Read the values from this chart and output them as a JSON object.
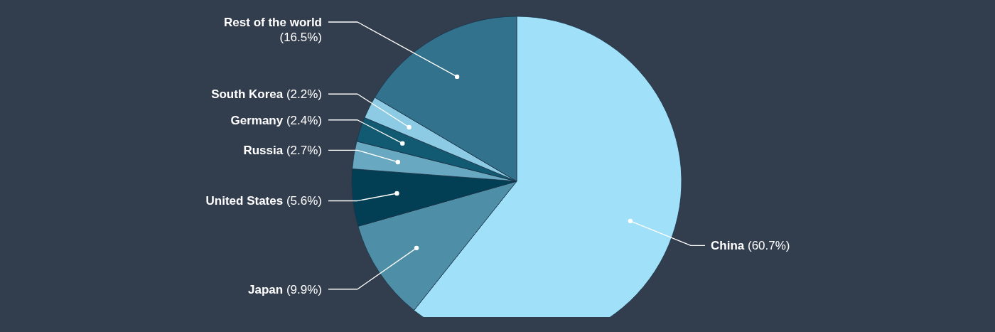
{
  "chart_data": {
    "type": "pie",
    "categories": [
      "China",
      "Japan",
      "United States",
      "Russia",
      "Germany",
      "South Korea",
      "Rest of the world"
    ],
    "values": [
      60.7,
      9.9,
      5.6,
      2.7,
      2.4,
      2.2,
      16.5
    ],
    "colors": [
      "#a0e0f8",
      "#4e8ea6",
      "#023f55",
      "#68a8c0",
      "#115a72",
      "#8ccbe3",
      "#33728d"
    ],
    "value_labels": [
      "(60.7%)",
      "(9.9%)",
      "(5.6%)",
      "(2.7%)",
      "(2.4%)",
      "(2.2%)",
      "(16.5%)"
    ]
  }
}
